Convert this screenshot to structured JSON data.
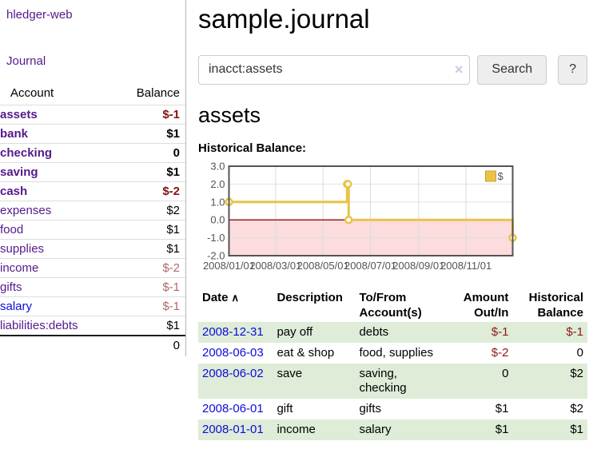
{
  "colors": {
    "link_visited_purple": "#551a8b",
    "link_blue": "#0c0cdc",
    "negative_strong": "#7f1414",
    "negative_soft": "#b06868",
    "negative_register": "#8b1a1a",
    "row_stripe_green": "#deecd8",
    "chart_line_gold": "#e9c347",
    "chart_negative_fill": "#fcdcdc",
    "chart_zero_line": "#9c1c1c"
  },
  "sidebar": {
    "brand": "hledger-web",
    "journal_link": "Journal",
    "accounts_table": {
      "headers": {
        "account": "Account",
        "balance": "Balance"
      },
      "rows": [
        {
          "name": "assets",
          "balance": "$-1"
        },
        {
          "name": "bank",
          "balance": "$1"
        },
        {
          "name": "checking",
          "balance": "0"
        },
        {
          "name": "saving",
          "balance": "$1"
        },
        {
          "name": "cash",
          "balance": "$-2"
        },
        {
          "name": "expenses",
          "balance": "$2"
        },
        {
          "name": "food",
          "balance": "$1"
        },
        {
          "name": "supplies",
          "balance": "$1"
        },
        {
          "name": "income",
          "balance": "$-2"
        },
        {
          "name": "gifts",
          "balance": "$-1"
        },
        {
          "name": "salary",
          "balance": "$-1"
        },
        {
          "name": "liabilities:debts",
          "balance": "$1"
        }
      ],
      "total": "0"
    }
  },
  "main": {
    "title": "sample.journal",
    "search": {
      "value": "inacct:assets",
      "clear_icon": "×",
      "search_button": "Search",
      "help_button": "?"
    },
    "account_heading": "assets",
    "chart_heading": "Historical Balance:"
  },
  "chart_data": {
    "type": "line",
    "title": "Historical Balance",
    "steps": true,
    "series": [
      {
        "name": "$",
        "color": "#e9c347",
        "points": [
          {
            "date": "2008/01/01",
            "value": 1.0
          },
          {
            "date": "2008/06/01",
            "value": 2.0
          },
          {
            "date": "2008/06/02",
            "value": 2.0
          },
          {
            "date": "2008/06/03",
            "value": 0.0
          },
          {
            "date": "2008/12/31",
            "value": -1.0
          }
        ]
      }
    ],
    "x_ticks": [
      "2008/01/01",
      "2008/03/01",
      "2008/05/01",
      "2008/07/01",
      "2008/09/01",
      "2008/11/01"
    ],
    "y_ticks": [
      3.0,
      2.0,
      1.0,
      0.0,
      -1.0,
      -2.0
    ],
    "ylim": [
      -2,
      3
    ],
    "xlim_dates": [
      "2008/01/01",
      "2008/12/31"
    ],
    "grid": true,
    "legend": {
      "label": "$",
      "position": "top-right"
    },
    "negative_region_shaded": true
  },
  "register": {
    "headers": {
      "date": "Date",
      "sort_icon": "∧",
      "description": "Description",
      "account_line1": "To/From",
      "account_line2": "Account(s)",
      "amount_line1": "Amount",
      "amount_line2": "Out/In",
      "balance_line1": "Historical",
      "balance_line2": "Balance"
    },
    "rows": [
      {
        "date": "2008-12-31",
        "description": "pay off",
        "accounts": "debts",
        "amount": "$-1",
        "balance": "$-1"
      },
      {
        "date": "2008-06-03",
        "description": "eat & shop",
        "accounts": "food, supplies",
        "amount": "$-2",
        "balance": "0"
      },
      {
        "date": "2008-06-02",
        "description": "save",
        "accounts": "saving, checking",
        "amount": "0",
        "balance": "$2"
      },
      {
        "date": "2008-06-01",
        "description": "gift",
        "accounts": "gifts",
        "amount": "$1",
        "balance": "$2"
      },
      {
        "date": "2008-01-01",
        "description": "income",
        "accounts": "salary",
        "amount": "$1",
        "balance": "$1"
      }
    ]
  }
}
